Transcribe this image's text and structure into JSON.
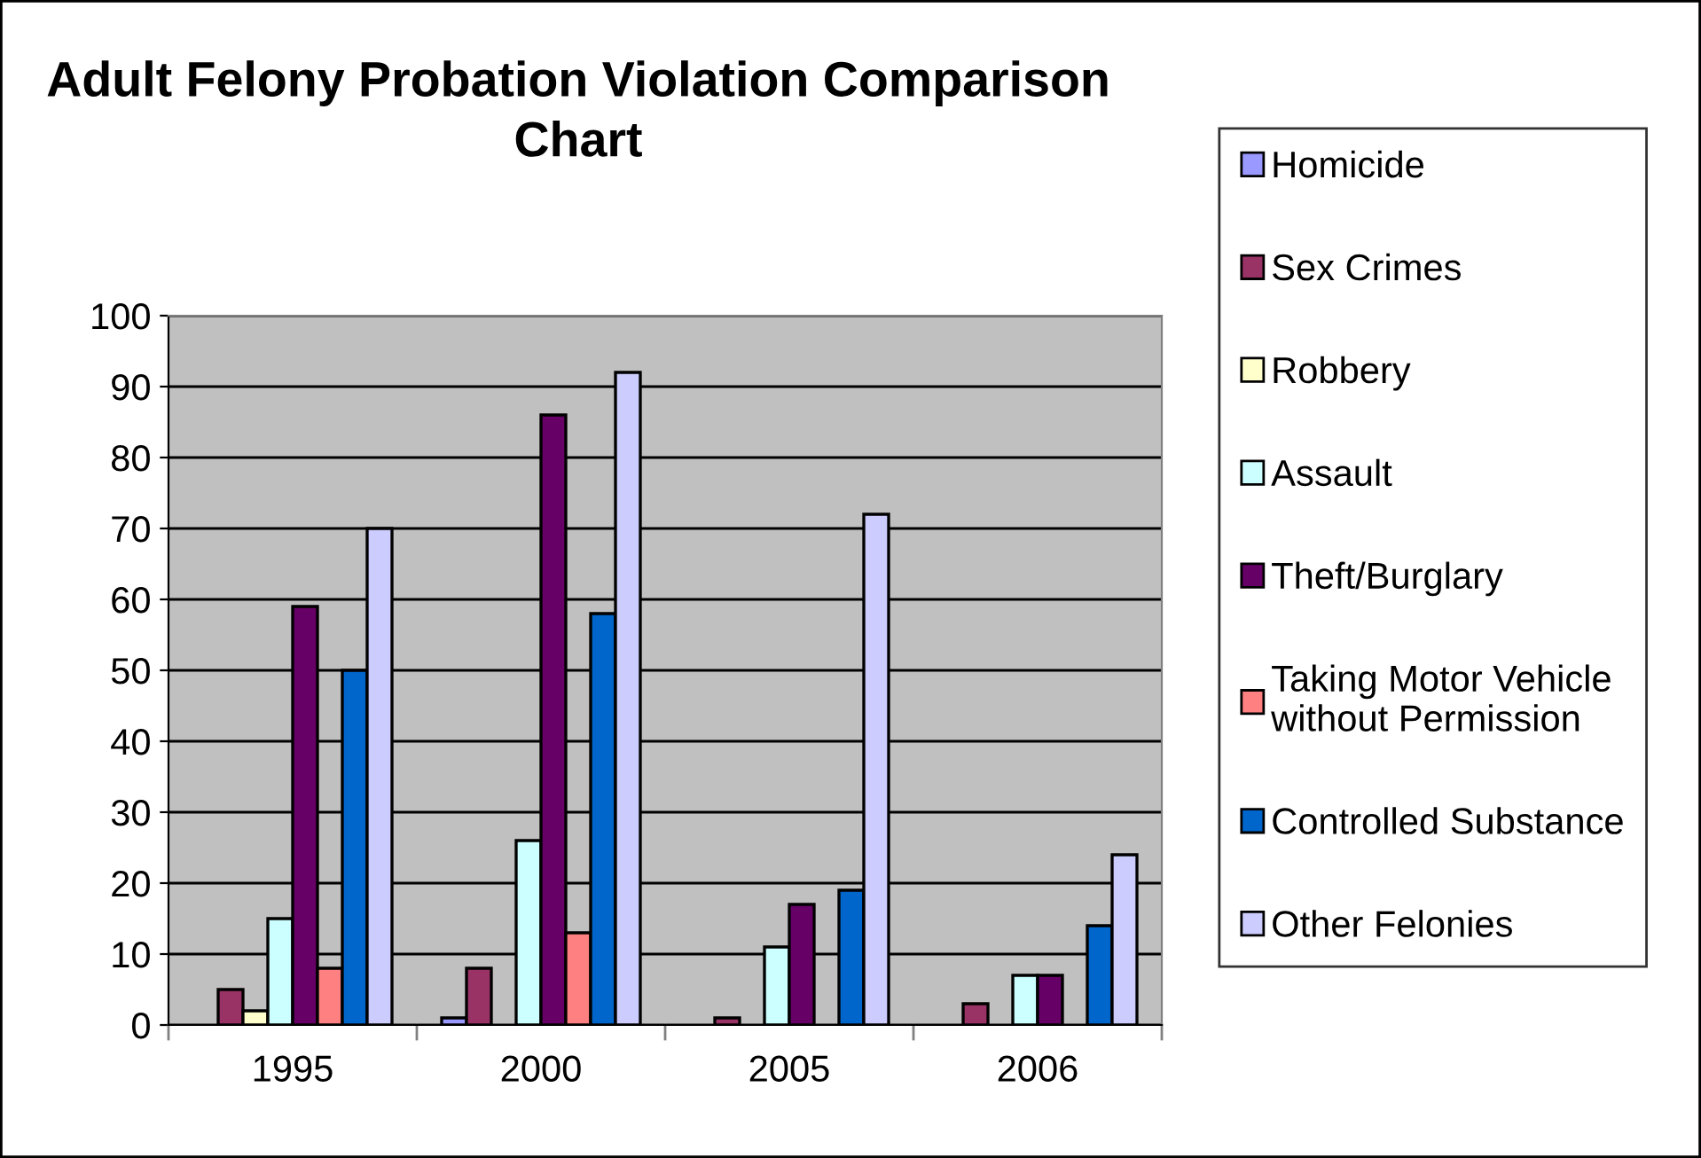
{
  "chart_data": {
    "type": "bar",
    "title": "Adult Felony Probation Violation Comparison\nChart",
    "categories": [
      "1995",
      "2000",
      "2005",
      "2006"
    ],
    "series": [
      {
        "name": "Homicide",
        "color": "#9999ff",
        "values": [
          null,
          1,
          null,
          null
        ]
      },
      {
        "name": "Sex Crimes",
        "color": "#993366",
        "values": [
          5,
          8,
          1,
          3
        ]
      },
      {
        "name": "Robbery",
        "color": "#ffffcc",
        "values": [
          2,
          null,
          null,
          null
        ]
      },
      {
        "name": "Assault",
        "color": "#ccffff",
        "values": [
          15,
          26,
          11,
          7
        ]
      },
      {
        "name": "Theft/Burglary",
        "color": "#660066",
        "values": [
          59,
          86,
          17,
          7
        ]
      },
      {
        "name": "Taking Motor Vehicle\nwithout Permission",
        "color": "#ff8080",
        "values": [
          8,
          13,
          null,
          null
        ]
      },
      {
        "name": "Controlled Substance",
        "color": "#0066cc",
        "values": [
          50,
          58,
          19,
          14
        ]
      },
      {
        "name": "Other Felonies",
        "color": "#ccccff",
        "values": [
          70,
          92,
          72,
          24
        ]
      }
    ],
    "ylim": [
      0,
      100
    ],
    "yticks": [
      0,
      10,
      20,
      30,
      40,
      50,
      60,
      70,
      80,
      90,
      100
    ],
    "grid": "y",
    "legend": "right"
  }
}
